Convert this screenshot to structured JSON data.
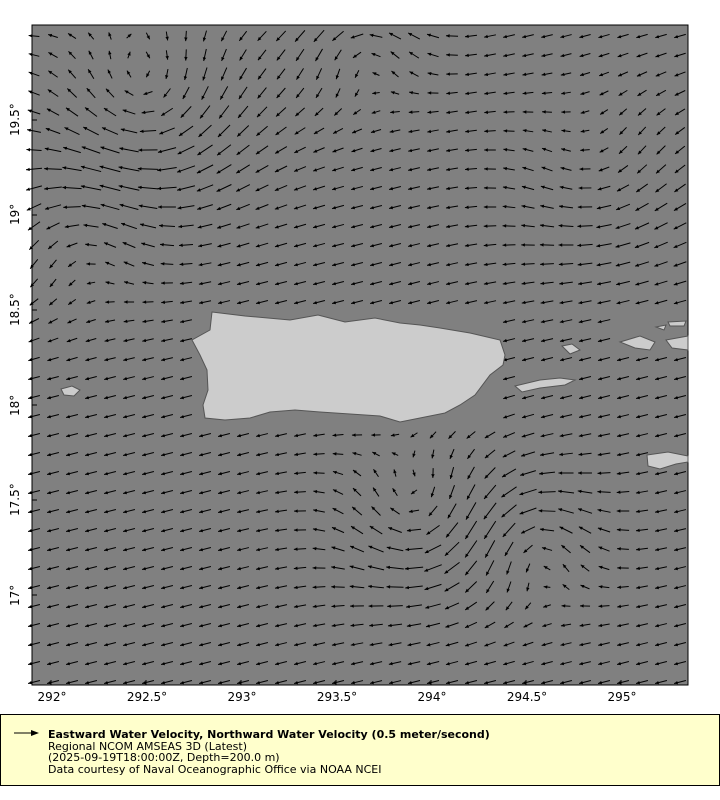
{
  "chart_data": {
    "type": "vector-map",
    "x_ticks": [
      "292°",
      "292.5°",
      "293°",
      "293.5°",
      "294°",
      "294.5°",
      "295°"
    ],
    "y_ticks": [
      "19.5°",
      "19°",
      "18.5°",
      "18°",
      "17.5°",
      "17°"
    ],
    "xlim": [
      291.9,
      295.35
    ],
    "ylim": [
      16.53,
      19.98
    ],
    "colors": {
      "ocean": "#808080",
      "land": "#cccccc",
      "coast": "#555555",
      "arrow": "#000000",
      "legend_bg": "#ffffcc"
    }
  },
  "legend": {
    "title": "Eastward Water Velocity, Northward Water Velocity (0.5 meter/second)",
    "dataset": "Regional NCOM AMSEAS 3D (Latest)",
    "constraints": "(2025-09-19T18:00:00Z, Depth=200.0 m)",
    "credit": "Data courtesy of Naval Oceanographic Office via NOAA NCEI",
    "icon": "arrow-right-icon"
  }
}
